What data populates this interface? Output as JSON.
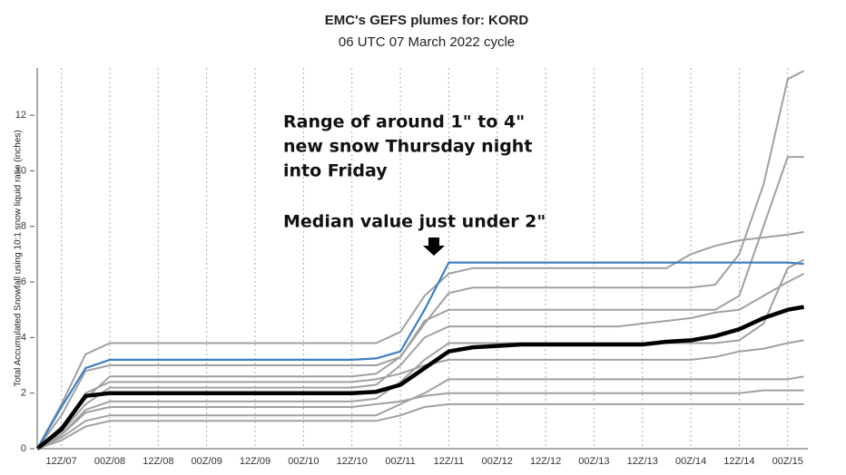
{
  "chart_data": {
    "type": "line",
    "title": "EMC's GEFS plumes for: KORD",
    "subtitle": "06 UTC 07 March 2022 cycle",
    "ylabel": "Total Accumulated Snowfall using 10:1 snow liquid ratio (inches)",
    "annotations": [
      "Range of around 1\" to 4\"",
      "new snow Thursday night",
      "into Friday",
      "Median value just under 2\""
    ],
    "xlim": [
      0,
      191
    ],
    "ylim": [
      0,
      13.7
    ],
    "yticks": [
      0,
      2,
      4,
      6,
      8,
      10,
      12
    ],
    "xticks": [
      {
        "value": 6,
        "label": "12Z/07"
      },
      {
        "value": 18,
        "label": "00Z/08"
      },
      {
        "value": 30,
        "label": "12Z/08"
      },
      {
        "value": 42,
        "label": "00Z/09"
      },
      {
        "value": 54,
        "label": "12Z/09"
      },
      {
        "value": 66,
        "label": "00Z/10"
      },
      {
        "value": 78,
        "label": "12Z/10"
      },
      {
        "value": 90,
        "label": "00Z/11"
      },
      {
        "value": 102,
        "label": "12Z/11"
      },
      {
        "value": 114,
        "label": "00Z/12"
      },
      {
        "value": 126,
        "label": "12Z/12"
      },
      {
        "value": 138,
        "label": "00Z/13"
      },
      {
        "value": 150,
        "label": "12Z/13"
      },
      {
        "value": 162,
        "label": "00Z/14"
      },
      {
        "value": 174,
        "label": "12Z/14"
      },
      {
        "value": 186,
        "label": "00Z/15"
      }
    ],
    "grid": true,
    "x": [
      0,
      6,
      12,
      18,
      24,
      30,
      36,
      42,
      48,
      54,
      60,
      66,
      72,
      78,
      84,
      90,
      96,
      102,
      108,
      114,
      120,
      126,
      132,
      138,
      144,
      150,
      156,
      162,
      168,
      174,
      180,
      186,
      190
    ],
    "series": [
      {
        "color": "#a0a0a0",
        "values": [
          0,
          1.6,
          3.4,
          3.8,
          3.8,
          3.8,
          3.8,
          3.8,
          3.8,
          3.8,
          3.8,
          3.8,
          3.8,
          3.8,
          3.8,
          4.2,
          5.5,
          6.3,
          6.5,
          6.5,
          6.5,
          6.5,
          6.5,
          6.5,
          6.5,
          6.5,
          6.5,
          7.0,
          7.3,
          7.5,
          7.6,
          7.7,
          7.8
        ]
      },
      {
        "color": "#a0a0a0",
        "values": [
          0,
          1.2,
          2.8,
          3.0,
          3.0,
          3.0,
          3.0,
          3.0,
          3.0,
          3.0,
          3.0,
          3.0,
          3.0,
          3.0,
          3.0,
          3.3,
          4.5,
          5.6,
          5.8,
          5.8,
          5.8,
          5.8,
          5.8,
          5.8,
          5.8,
          5.8,
          5.8,
          5.8,
          5.9,
          7.0,
          9.5,
          13.3,
          13.6
        ]
      },
      {
        "color": "#a0a0a0",
        "values": [
          0,
          0.8,
          1.8,
          2.6,
          2.6,
          2.6,
          2.6,
          2.6,
          2.6,
          2.6,
          2.6,
          2.6,
          2.6,
          2.6,
          2.7,
          3.3,
          4.6,
          5.0,
          5.0,
          5.0,
          5.0,
          5.0,
          5.0,
          5.0,
          5.0,
          5.0,
          5.0,
          5.0,
          5.0,
          5.5,
          8.0,
          10.5,
          10.5
        ]
      },
      {
        "color": "#a0a0a0",
        "values": [
          0,
          0.5,
          1.4,
          1.7,
          1.7,
          1.7,
          1.7,
          1.7,
          1.7,
          1.7,
          1.7,
          1.7,
          1.7,
          1.7,
          1.8,
          2.4,
          3.2,
          3.8,
          3.8,
          3.8,
          3.8,
          3.8,
          3.8,
          3.8,
          3.8,
          3.8,
          3.8,
          3.8,
          3.8,
          3.9,
          4.5,
          6.5,
          6.8
        ]
      },
      {
        "color": "#a0a0a0",
        "values": [
          0,
          0.4,
          1.0,
          1.2,
          1.2,
          1.2,
          1.2,
          1.2,
          1.2,
          1.2,
          1.2,
          1.2,
          1.2,
          1.2,
          1.2,
          1.6,
          2.0,
          2.5,
          2.5,
          2.5,
          2.5,
          2.5,
          2.5,
          2.5,
          2.5,
          2.5,
          2.5,
          2.5,
          2.5,
          2.5,
          2.5,
          2.5,
          2.6
        ]
      },
      {
        "color": "#a0a0a0",
        "values": [
          0,
          0.3,
          0.8,
          1.0,
          1.0,
          1.0,
          1.0,
          1.0,
          1.0,
          1.0,
          1.0,
          1.0,
          1.0,
          1.0,
          1.0,
          1.2,
          1.5,
          1.6,
          1.6,
          1.6,
          1.6,
          1.6,
          1.6,
          1.6,
          1.6,
          1.6,
          1.6,
          1.6,
          1.6,
          1.6,
          1.6,
          1.6,
          1.6
        ]
      },
      {
        "color": "#a0a0a0",
        "values": [
          0,
          0.6,
          1.6,
          2.2,
          2.2,
          2.2,
          2.2,
          2.2,
          2.2,
          2.2,
          2.2,
          2.2,
          2.2,
          2.2,
          2.3,
          3.0,
          4.0,
          4.4,
          4.4,
          4.4,
          4.4,
          4.4,
          4.4,
          4.4,
          4.4,
          4.5,
          4.6,
          4.7,
          4.9,
          5.0,
          5.5,
          6.0,
          6.3
        ]
      },
      {
        "color": "#a0a0a0",
        "values": [
          0,
          0.7,
          2.0,
          2.4,
          2.4,
          2.4,
          2.4,
          2.4,
          2.4,
          2.4,
          2.4,
          2.4,
          2.4,
          2.4,
          2.5,
          2.7,
          3.0,
          3.2,
          3.2,
          3.2,
          3.2,
          3.2,
          3.2,
          3.2,
          3.2,
          3.2,
          3.2,
          3.2,
          3.3,
          3.5,
          3.6,
          3.8,
          3.9
        ]
      },
      {
        "color": "#a0a0a0",
        "values": [
          0,
          0.5,
          1.3,
          1.5,
          1.5,
          1.5,
          1.5,
          1.5,
          1.5,
          1.5,
          1.5,
          1.5,
          1.5,
          1.5,
          1.6,
          1.7,
          1.9,
          2.0,
          2.0,
          2.0,
          2.0,
          2.0,
          2.0,
          2.0,
          2.0,
          2.0,
          2.0,
          2.0,
          2.0,
          2.0,
          2.1,
          2.1,
          2.1
        ]
      },
      {
        "color": "#3f7fc0",
        "values": [
          0,
          1.5,
          2.9,
          3.2,
          3.2,
          3.2,
          3.2,
          3.2,
          3.2,
          3.2,
          3.2,
          3.2,
          3.2,
          3.2,
          3.25,
          3.5,
          5.0,
          6.7,
          6.7,
          6.7,
          6.7,
          6.7,
          6.7,
          6.7,
          6.7,
          6.7,
          6.7,
          6.7,
          6.7,
          6.7,
          6.7,
          6.7,
          6.65
        ]
      },
      {
        "color": "#000000",
        "values": [
          0,
          0.7,
          1.9,
          2.0,
          2.0,
          2.0,
          2.0,
          2.0,
          2.0,
          2.0,
          2.0,
          2.0,
          2.0,
          2.0,
          2.05,
          2.3,
          2.9,
          3.5,
          3.65,
          3.7,
          3.75,
          3.75,
          3.75,
          3.75,
          3.75,
          3.75,
          3.85,
          3.9,
          4.05,
          4.3,
          4.7,
          5.0,
          5.1
        ]
      }
    ]
  }
}
